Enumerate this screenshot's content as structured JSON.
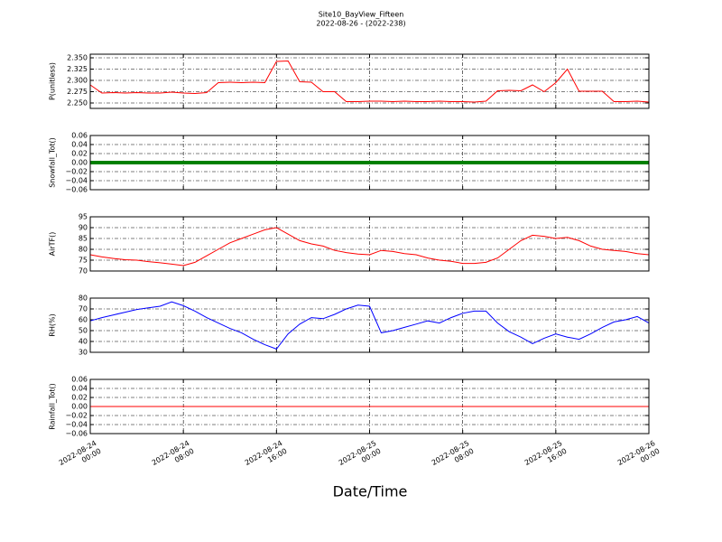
{
  "chart_data": {
    "type": "line",
    "title": "Site10_BayView_Fifteen",
    "subtitle": "2022-08-26 - (2022-238)",
    "xlabel": "Date/Time",
    "xlim": [
      "2022-08-24 00:00",
      "2022-08-26 00:00"
    ],
    "xticks": [
      {
        "value": "2022-08-24 00:00",
        "label": "2022-08-24\n00:00"
      },
      {
        "value": "2022-08-24 08:00",
        "label": "2022-08-24\n08:00"
      },
      {
        "value": "2022-08-24 16:00",
        "label": "2022-08-24\n16:00"
      },
      {
        "value": "2022-08-25 00:00",
        "label": "2022-08-25\n00:00"
      },
      {
        "value": "2022-08-25 08:00",
        "label": "2022-08-25\n08:00"
      },
      {
        "value": "2022-08-25 16:00",
        "label": "2022-08-25\n16:00"
      },
      {
        "value": "2022-08-26 00:00",
        "label": "2022-08-26\n00:00"
      }
    ],
    "grid": true,
    "x": [
      "2022-08-24 00:00",
      "2022-08-24 01:00",
      "2022-08-24 02:00",
      "2022-08-24 03:00",
      "2022-08-24 04:00",
      "2022-08-24 05:00",
      "2022-08-24 06:00",
      "2022-08-24 07:00",
      "2022-08-24 08:00",
      "2022-08-24 09:00",
      "2022-08-24 10:00",
      "2022-08-24 11:00",
      "2022-08-24 12:00",
      "2022-08-24 13:00",
      "2022-08-24 14:00",
      "2022-08-24 15:00",
      "2022-08-24 16:00",
      "2022-08-24 17:00",
      "2022-08-24 18:00",
      "2022-08-24 19:00",
      "2022-08-24 20:00",
      "2022-08-24 21:00",
      "2022-08-24 22:00",
      "2022-08-24 23:00",
      "2022-08-25 00:00",
      "2022-08-25 01:00",
      "2022-08-25 02:00",
      "2022-08-25 03:00",
      "2022-08-25 04:00",
      "2022-08-25 05:00",
      "2022-08-25 06:00",
      "2022-08-25 07:00",
      "2022-08-25 08:00",
      "2022-08-25 09:00",
      "2022-08-25 10:00",
      "2022-08-25 11:00",
      "2022-08-25 12:00",
      "2022-08-25 13:00",
      "2022-08-25 14:00",
      "2022-08-25 15:00",
      "2022-08-25 16:00",
      "2022-08-25 17:00",
      "2022-08-25 18:00",
      "2022-08-25 19:00",
      "2022-08-25 20:00",
      "2022-08-25 21:00",
      "2022-08-25 22:00",
      "2022-08-25 23:00",
      "2022-08-26 00:00"
    ],
    "panels": [
      {
        "ylabel": "P(unitless)",
        "ylim": [
          2.238,
          2.358
        ],
        "yticks": [
          {
            "value": 2.25,
            "label": "2.250"
          },
          {
            "value": 2.275,
            "label": "2.275"
          },
          {
            "value": 2.3,
            "label": "2.300"
          },
          {
            "value": 2.325,
            "label": "2.325"
          },
          {
            "value": 2.35,
            "label": "2.350"
          }
        ],
        "series": [
          {
            "color": "#ff0000",
            "width": 1,
            "values": [
              2.29,
              2.272,
              2.273,
              2.272,
              2.273,
              2.272,
              2.272,
              2.274,
              2.272,
              2.271,
              2.273,
              2.295,
              2.296,
              2.295,
              2.296,
              2.295,
              2.342,
              2.343,
              2.297,
              2.296,
              2.275,
              2.275,
              2.253,
              2.253,
              2.254,
              2.254,
              2.253,
              2.254,
              2.253,
              2.253,
              2.254,
              2.253,
              2.253,
              2.252,
              2.254,
              2.277,
              2.278,
              2.277,
              2.29,
              2.275,
              2.295,
              2.325,
              2.276,
              2.276,
              2.276,
              2.253,
              2.253,
              2.254,
              2.252
            ]
          }
        ]
      },
      {
        "ylabel": "Snowfall_Tot()",
        "ylim": [
          -0.06,
          0.06
        ],
        "yticks": [
          {
            "value": -0.06,
            "label": "−0.06"
          },
          {
            "value": -0.04,
            "label": "−0.04"
          },
          {
            "value": -0.02,
            "label": "−0.02"
          },
          {
            "value": 0,
            "label": "0.00"
          },
          {
            "value": 0.02,
            "label": "0.02"
          },
          {
            "value": 0.04,
            "label": "0.04"
          },
          {
            "value": 0.06,
            "label": "0.06"
          }
        ],
        "series": [
          {
            "color": "#008000",
            "width": 4,
            "values": [
              0,
              0,
              0,
              0,
              0,
              0,
              0,
              0,
              0,
              0,
              0,
              0,
              0,
              0,
              0,
              0,
              0,
              0,
              0,
              0,
              0,
              0,
              0,
              0,
              0,
              0,
              0,
              0,
              0,
              0,
              0,
              0,
              0,
              0,
              0,
              0,
              0,
              0,
              0,
              0,
              0,
              0,
              0,
              0,
              0,
              0,
              0,
              0,
              0
            ]
          }
        ]
      },
      {
        "ylabel": "AirTF()",
        "ylim": [
          70,
          95
        ],
        "yticks": [
          70,
          75,
          80,
          85,
          90,
          95
        ],
        "series": [
          {
            "color": "#ff0000",
            "width": 1,
            "values": [
              77.5,
              76.5,
              75.8,
              75.2,
              75,
              74.3,
              73.8,
              73.2,
              72.5,
              74,
              77,
              80,
              83,
              85,
              87,
              89,
              90,
              87,
              84,
              82.5,
              81.5,
              79.5,
              78.5,
              77.8,
              77.5,
              79.5,
              79,
              78,
              77.5,
              76,
              75,
              74.5,
              73.5,
              73.5,
              74,
              76,
              80,
              84,
              86.5,
              86,
              85,
              85.5,
              84,
              81.5,
              80,
              79.5,
              79,
              78,
              77.5
            ]
          }
        ]
      },
      {
        "ylabel": "RH(%)",
        "ylim": [
          30,
          80
        ],
        "yticks": [
          30,
          40,
          50,
          60,
          70,
          80
        ],
        "series": [
          {
            "color": "#0000ff",
            "width": 1,
            "values": [
              59,
              62,
              64.5,
              67,
              69.5,
              71,
              72.5,
              76.5,
              73,
              68,
              62,
              57,
              52,
              48,
              42,
              37,
              33,
              47,
              56,
              62,
              61,
              65,
              70,
              73.5,
              72.5,
              48,
              50,
              53,
              56,
              59,
              57,
              62,
              66,
              68,
              68,
              57,
              49,
              44,
              38,
              43,
              47,
              44,
              42,
              47,
              53,
              58,
              60,
              63,
              57
            ]
          }
        ]
      },
      {
        "ylabel": "Rainfall_Tot()",
        "ylim": [
          -0.06,
          0.06
        ],
        "yticks": [
          {
            "value": -0.06,
            "label": "−0.06"
          },
          {
            "value": -0.04,
            "label": "−0.04"
          },
          {
            "value": -0.02,
            "label": "−0.02"
          },
          {
            "value": 0,
            "label": "0.00"
          },
          {
            "value": 0.02,
            "label": "0.02"
          },
          {
            "value": 0.04,
            "label": "0.04"
          },
          {
            "value": 0.06,
            "label": "0.06"
          }
        ],
        "series": [
          {
            "color": "#ff0000",
            "width": 1,
            "values": [
              0,
              0,
              0,
              0,
              0,
              0,
              0,
              0,
              0,
              0,
              0,
              0,
              0,
              0,
              0,
              0,
              0,
              0,
              0,
              0,
              0,
              0,
              0,
              0,
              0,
              0,
              0,
              0,
              0,
              0,
              0,
              0,
              0,
              0,
              0,
              0,
              0,
              0,
              0,
              0,
              0,
              0,
              0,
              0,
              0,
              0,
              0,
              0,
              0
            ]
          }
        ]
      }
    ]
  }
}
